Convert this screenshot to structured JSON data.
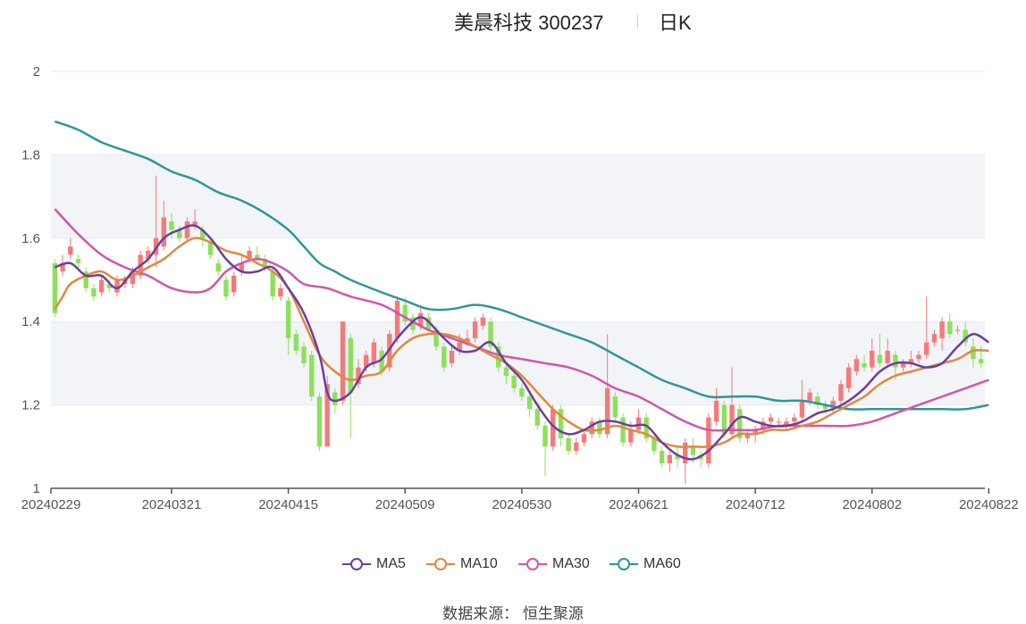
{
  "header": {
    "name": "美晨科技 300237",
    "period": "日K"
  },
  "source": "数据来源：  恒生聚源",
  "colors": {
    "up": "#f47a7a",
    "down": "#8de05a",
    "ma5": "#6b3fa0",
    "ma10": "#e08a3c",
    "ma30": "#d455a8",
    "ma60": "#2e9797",
    "grid": "#e6e9f2",
    "band": "#f3f4f8"
  },
  "chart_data": {
    "type": "candlestick",
    "ylim": [
      1,
      2
    ],
    "yticks": [
      "2",
      "1.8",
      "1.6",
      "1.4",
      "1.2",
      "1"
    ],
    "xtick_labels": [
      "20240229",
      "20240321",
      "20240415",
      "20240509",
      "20240530",
      "20240621",
      "20240712",
      "20240802",
      "20240822"
    ],
    "xtick_index": [
      0,
      15,
      30,
      45,
      60,
      75,
      90,
      105,
      120
    ],
    "legend": [
      "MA5",
      "MA10",
      "MA30",
      "MA60"
    ],
    "candles": [
      [
        1.54,
        1.42,
        1.55,
        1.41
      ],
      [
        1.52,
        1.54,
        1.56,
        1.51
      ],
      [
        1.56,
        1.58,
        1.6,
        1.55
      ],
      [
        1.55,
        1.54,
        1.56,
        1.53
      ],
      [
        1.52,
        1.48,
        1.53,
        1.47
      ],
      [
        1.48,
        1.46,
        1.49,
        1.45
      ],
      [
        1.47,
        1.5,
        1.51,
        1.46
      ],
      [
        1.49,
        1.48,
        1.5,
        1.47
      ],
      [
        1.47,
        1.5,
        1.51,
        1.46
      ],
      [
        1.49,
        1.5,
        1.51,
        1.48
      ],
      [
        1.49,
        1.52,
        1.53,
        1.48
      ],
      [
        1.51,
        1.56,
        1.57,
        1.5
      ],
      [
        1.55,
        1.57,
        1.58,
        1.54
      ],
      [
        1.56,
        1.6,
        1.75,
        1.53
      ],
      [
        1.58,
        1.65,
        1.69,
        1.57
      ],
      [
        1.64,
        1.62,
        1.66,
        1.6
      ],
      [
        1.62,
        1.6,
        1.63,
        1.59
      ],
      [
        1.6,
        1.64,
        1.65,
        1.59
      ],
      [
        1.63,
        1.64,
        1.67,
        1.62
      ],
      [
        1.62,
        1.6,
        1.63,
        1.58
      ],
      [
        1.59,
        1.56,
        1.6,
        1.55
      ],
      [
        1.54,
        1.52,
        1.55,
        1.51
      ],
      [
        1.5,
        1.46,
        1.51,
        1.45
      ],
      [
        1.47,
        1.51,
        1.52,
        1.46
      ],
      [
        1.52,
        1.54,
        1.56,
        1.51
      ],
      [
        1.55,
        1.57,
        1.58,
        1.54
      ],
      [
        1.56,
        1.55,
        1.58,
        1.54
      ],
      [
        1.55,
        1.53,
        1.56,
        1.52
      ],
      [
        1.52,
        1.46,
        1.53,
        1.45
      ],
      [
        1.46,
        1.48,
        1.49,
        1.45
      ],
      [
        1.45,
        1.36,
        1.46,
        1.32
      ],
      [
        1.37,
        1.33,
        1.38,
        1.32
      ],
      [
        1.34,
        1.3,
        1.35,
        1.29
      ],
      [
        1.32,
        1.22,
        1.33,
        1.21
      ],
      [
        1.22,
        1.1,
        1.23,
        1.09
      ],
      [
        1.1,
        1.25,
        1.27,
        1.1
      ],
      [
        1.23,
        1.2,
        1.24,
        1.18
      ],
      [
        1.21,
        1.4,
        1.4,
        1.2
      ],
      [
        1.36,
        1.23,
        1.37,
        1.12
      ],
      [
        1.25,
        1.29,
        1.31,
        1.24
      ],
      [
        1.29,
        1.32,
        1.33,
        1.28
      ],
      [
        1.3,
        1.35,
        1.36,
        1.29
      ],
      [
        1.33,
        1.28,
        1.34,
        1.27
      ],
      [
        1.29,
        1.37,
        1.38,
        1.28
      ],
      [
        1.36,
        1.45,
        1.46,
        1.35
      ],
      [
        1.44,
        1.4,
        1.46,
        1.39
      ],
      [
        1.41,
        1.38,
        1.42,
        1.37
      ],
      [
        1.39,
        1.42,
        1.44,
        1.38
      ],
      [
        1.41,
        1.38,
        1.42,
        1.37
      ],
      [
        1.38,
        1.34,
        1.39,
        1.33
      ],
      [
        1.34,
        1.29,
        1.35,
        1.28
      ],
      [
        1.3,
        1.33,
        1.34,
        1.29
      ],
      [
        1.33,
        1.35,
        1.37,
        1.32
      ],
      [
        1.35,
        1.36,
        1.38,
        1.34
      ],
      [
        1.36,
        1.4,
        1.41,
        1.35
      ],
      [
        1.39,
        1.41,
        1.42,
        1.38
      ],
      [
        1.4,
        1.34,
        1.41,
        1.33
      ],
      [
        1.34,
        1.29,
        1.35,
        1.28
      ],
      [
        1.29,
        1.27,
        1.3,
        1.25
      ],
      [
        1.27,
        1.24,
        1.28,
        1.23
      ],
      [
        1.24,
        1.22,
        1.25,
        1.21
      ],
      [
        1.22,
        1.19,
        1.23,
        1.17
      ],
      [
        1.19,
        1.15,
        1.2,
        1.14
      ],
      [
        1.15,
        1.1,
        1.16,
        1.03
      ],
      [
        1.1,
        1.19,
        1.2,
        1.09
      ],
      [
        1.19,
        1.12,
        1.2,
        1.1
      ],
      [
        1.12,
        1.09,
        1.13,
        1.08
      ],
      [
        1.09,
        1.11,
        1.12,
        1.08
      ],
      [
        1.11,
        1.13,
        1.14,
        1.1
      ],
      [
        1.13,
        1.16,
        1.17,
        1.12
      ],
      [
        1.16,
        1.13,
        1.17,
        1.12
      ],
      [
        1.13,
        1.24,
        1.37,
        1.12
      ],
      [
        1.22,
        1.17,
        1.23,
        1.16
      ],
      [
        1.17,
        1.11,
        1.18,
        1.1
      ],
      [
        1.11,
        1.14,
        1.16,
        1.1
      ],
      [
        1.14,
        1.17,
        1.19,
        1.13
      ],
      [
        1.17,
        1.12,
        1.18,
        1.11
      ],
      [
        1.12,
        1.09,
        1.13,
        1.08
      ],
      [
        1.09,
        1.06,
        1.1,
        1.05
      ],
      [
        1.06,
        1.08,
        1.09,
        1.04
      ],
      [
        1.08,
        1.07,
        1.1,
        1.05
      ],
      [
        1.06,
        1.11,
        1.12,
        1.01
      ],
      [
        1.1,
        1.08,
        1.12,
        1.06
      ],
      [
        1.08,
        1.07,
        1.09,
        1.05
      ],
      [
        1.06,
        1.17,
        1.18,
        1.05
      ],
      [
        1.16,
        1.21,
        1.24,
        1.15
      ],
      [
        1.2,
        1.13,
        1.21,
        1.12
      ],
      [
        1.13,
        1.2,
        1.29,
        1.12
      ],
      [
        1.19,
        1.12,
        1.2,
        1.11
      ],
      [
        1.12,
        1.13,
        1.14,
        1.11
      ],
      [
        1.13,
        1.14,
        1.15,
        1.11
      ],
      [
        1.14,
        1.16,
        1.17,
        1.13
      ],
      [
        1.16,
        1.17,
        1.18,
        1.15
      ],
      [
        1.16,
        1.16,
        1.17,
        1.15
      ],
      [
        1.15,
        1.16,
        1.17,
        1.14
      ],
      [
        1.16,
        1.17,
        1.18,
        1.15
      ],
      [
        1.17,
        1.21,
        1.26,
        1.16
      ],
      [
        1.21,
        1.23,
        1.24,
        1.2
      ],
      [
        1.22,
        1.2,
        1.23,
        1.19
      ],
      [
        1.2,
        1.19,
        1.21,
        1.18
      ],
      [
        1.19,
        1.21,
        1.22,
        1.18
      ],
      [
        1.21,
        1.25,
        1.26,
        1.2
      ],
      [
        1.24,
        1.29,
        1.3,
        1.23
      ],
      [
        1.28,
        1.31,
        1.32,
        1.27
      ],
      [
        1.3,
        1.29,
        1.32,
        1.28
      ],
      [
        1.29,
        1.33,
        1.36,
        1.28
      ],
      [
        1.32,
        1.3,
        1.37,
        1.29
      ],
      [
        1.3,
        1.33,
        1.36,
        1.29
      ],
      [
        1.32,
        1.29,
        1.33,
        1.26
      ],
      [
        1.29,
        1.3,
        1.31,
        1.28
      ],
      [
        1.3,
        1.31,
        1.33,
        1.29
      ],
      [
        1.31,
        1.32,
        1.33,
        1.3
      ],
      [
        1.32,
        1.35,
        1.46,
        1.31
      ],
      [
        1.35,
        1.37,
        1.38,
        1.34
      ],
      [
        1.36,
        1.4,
        1.41,
        1.33
      ],
      [
        1.4,
        1.37,
        1.42,
        1.36
      ],
      [
        1.38,
        1.38,
        1.39,
        1.37
      ],
      [
        1.38,
        1.35,
        1.4,
        1.34
      ],
      [
        1.34,
        1.31,
        1.36,
        1.29
      ],
      [
        1.31,
        1.3,
        1.34,
        1.29
      ]
    ],
    "ma5": [
      [
        0,
        1.53
      ],
      [
        2,
        1.54
      ],
      [
        4,
        1.51
      ],
      [
        6,
        1.51
      ],
      [
        8,
        1.48
      ],
      [
        10,
        1.52
      ],
      [
        12,
        1.55
      ],
      [
        14,
        1.6
      ],
      [
        16,
        1.62
      ],
      [
        18,
        1.63
      ],
      [
        20,
        1.6
      ],
      [
        22,
        1.55
      ],
      [
        24,
        1.52
      ],
      [
        26,
        1.52
      ],
      [
        28,
        1.53
      ],
      [
        30,
        1.48
      ],
      [
        32,
        1.42
      ],
      [
        34,
        1.32
      ],
      [
        35,
        1.23
      ],
      [
        36,
        1.21
      ],
      [
        38,
        1.23
      ],
      [
        40,
        1.29
      ],
      [
        42,
        1.31
      ],
      [
        44,
        1.36
      ],
      [
        46,
        1.4
      ],
      [
        47,
        1.41
      ],
      [
        48,
        1.4
      ],
      [
        50,
        1.36
      ],
      [
        52,
        1.33
      ],
      [
        54,
        1.33
      ],
      [
        56,
        1.35
      ],
      [
        58,
        1.3
      ],
      [
        60,
        1.26
      ],
      [
        62,
        1.2
      ],
      [
        64,
        1.15
      ],
      [
        66,
        1.13
      ],
      [
        68,
        1.14
      ],
      [
        70,
        1.16
      ],
      [
        72,
        1.16
      ],
      [
        74,
        1.15
      ],
      [
        76,
        1.15
      ],
      [
        78,
        1.11
      ],
      [
        80,
        1.08
      ],
      [
        82,
        1.07
      ],
      [
        84,
        1.09
      ],
      [
        86,
        1.13
      ],
      [
        88,
        1.17
      ],
      [
        90,
        1.16
      ],
      [
        92,
        1.15
      ],
      [
        94,
        1.15
      ],
      [
        96,
        1.16
      ],
      [
        98,
        1.18
      ],
      [
        100,
        1.19
      ],
      [
        102,
        1.21
      ],
      [
        104,
        1.24
      ],
      [
        106,
        1.28
      ],
      [
        108,
        1.3
      ],
      [
        110,
        1.3
      ],
      [
        112,
        1.29
      ],
      [
        114,
        1.3
      ],
      [
        116,
        1.34
      ],
      [
        118,
        1.37
      ],
      [
        120,
        1.35
      ]
    ],
    "ma10": [
      [
        0,
        1.43
      ],
      [
        1,
        1.46
      ],
      [
        2,
        1.49
      ],
      [
        4,
        1.51
      ],
      [
        6,
        1.52
      ],
      [
        8,
        1.5
      ],
      [
        10,
        1.51
      ],
      [
        12,
        1.53
      ],
      [
        14,
        1.55
      ],
      [
        16,
        1.58
      ],
      [
        18,
        1.6
      ],
      [
        20,
        1.59
      ],
      [
        22,
        1.57
      ],
      [
        24,
        1.56
      ],
      [
        26,
        1.54
      ],
      [
        28,
        1.52
      ],
      [
        30,
        1.48
      ],
      [
        32,
        1.4
      ],
      [
        34,
        1.32
      ],
      [
        36,
        1.28
      ],
      [
        38,
        1.26
      ],
      [
        40,
        1.27
      ],
      [
        42,
        1.28
      ],
      [
        44,
        1.33
      ],
      [
        46,
        1.36
      ],
      [
        48,
        1.37
      ],
      [
        50,
        1.37
      ],
      [
        52,
        1.36
      ],
      [
        54,
        1.34
      ],
      [
        56,
        1.32
      ],
      [
        58,
        1.3
      ],
      [
        60,
        1.27
      ],
      [
        62,
        1.23
      ],
      [
        64,
        1.19
      ],
      [
        66,
        1.16
      ],
      [
        68,
        1.14
      ],
      [
        70,
        1.14
      ],
      [
        72,
        1.15
      ],
      [
        74,
        1.14
      ],
      [
        76,
        1.13
      ],
      [
        78,
        1.11
      ],
      [
        80,
        1.1
      ],
      [
        82,
        1.1
      ],
      [
        84,
        1.1
      ],
      [
        86,
        1.11
      ],
      [
        88,
        1.13
      ],
      [
        90,
        1.13
      ],
      [
        92,
        1.14
      ],
      [
        94,
        1.14
      ],
      [
        96,
        1.15
      ],
      [
        98,
        1.16
      ],
      [
        100,
        1.18
      ],
      [
        102,
        1.2
      ],
      [
        104,
        1.22
      ],
      [
        106,
        1.25
      ],
      [
        108,
        1.27
      ],
      [
        110,
        1.28
      ],
      [
        112,
        1.29
      ],
      [
        114,
        1.3
      ],
      [
        116,
        1.31
      ],
      [
        118,
        1.33
      ],
      [
        120,
        1.33
      ]
    ],
    "ma30": [
      [
        0,
        1.67
      ],
      [
        3,
        1.61
      ],
      [
        6,
        1.56
      ],
      [
        9,
        1.53
      ],
      [
        12,
        1.51
      ],
      [
        15,
        1.48
      ],
      [
        18,
        1.47
      ],
      [
        20,
        1.48
      ],
      [
        22,
        1.52
      ],
      [
        24,
        1.54
      ],
      [
        26,
        1.55
      ],
      [
        28,
        1.54
      ],
      [
        30,
        1.52
      ],
      [
        32,
        1.49
      ],
      [
        35,
        1.48
      ],
      [
        38,
        1.46
      ],
      [
        42,
        1.44
      ],
      [
        45,
        1.41
      ],
      [
        48,
        1.38
      ],
      [
        51,
        1.36
      ],
      [
        54,
        1.34
      ],
      [
        57,
        1.32
      ],
      [
        60,
        1.31
      ],
      [
        63,
        1.3
      ],
      [
        66,
        1.29
      ],
      [
        69,
        1.27
      ],
      [
        72,
        1.24
      ],
      [
        75,
        1.22
      ],
      [
        78,
        1.19
      ],
      [
        81,
        1.16
      ],
      [
        84,
        1.14
      ],
      [
        87,
        1.14
      ],
      [
        90,
        1.14
      ],
      [
        93,
        1.15
      ],
      [
        96,
        1.15
      ],
      [
        99,
        1.15
      ],
      [
        102,
        1.15
      ],
      [
        105,
        1.16
      ],
      [
        108,
        1.18
      ],
      [
        111,
        1.2
      ],
      [
        114,
        1.22
      ],
      [
        117,
        1.24
      ],
      [
        120,
        1.26
      ]
    ],
    "ma60": [
      [
        0,
        1.88
      ],
      [
        3,
        1.86
      ],
      [
        6,
        1.83
      ],
      [
        9,
        1.81
      ],
      [
        12,
        1.79
      ],
      [
        15,
        1.76
      ],
      [
        18,
        1.74
      ],
      [
        21,
        1.71
      ],
      [
        24,
        1.69
      ],
      [
        27,
        1.66
      ],
      [
        30,
        1.62
      ],
      [
        32,
        1.58
      ],
      [
        34,
        1.54
      ],
      [
        36,
        1.52
      ],
      [
        38,
        1.5
      ],
      [
        42,
        1.47
      ],
      [
        45,
        1.45
      ],
      [
        48,
        1.43
      ],
      [
        51,
        1.43
      ],
      [
        54,
        1.44
      ],
      [
        57,
        1.43
      ],
      [
        60,
        1.41
      ],
      [
        63,
        1.39
      ],
      [
        66,
        1.37
      ],
      [
        69,
        1.35
      ],
      [
        72,
        1.32
      ],
      [
        75,
        1.29
      ],
      [
        78,
        1.26
      ],
      [
        81,
        1.24
      ],
      [
        84,
        1.22
      ],
      [
        87,
        1.22
      ],
      [
        90,
        1.22
      ],
      [
        93,
        1.21
      ],
      [
        96,
        1.21
      ],
      [
        99,
        1.2
      ],
      [
        102,
        1.19
      ],
      [
        105,
        1.19
      ],
      [
        108,
        1.19
      ],
      [
        111,
        1.19
      ],
      [
        114,
        1.19
      ],
      [
        117,
        1.19
      ],
      [
        120,
        1.2
      ]
    ]
  }
}
